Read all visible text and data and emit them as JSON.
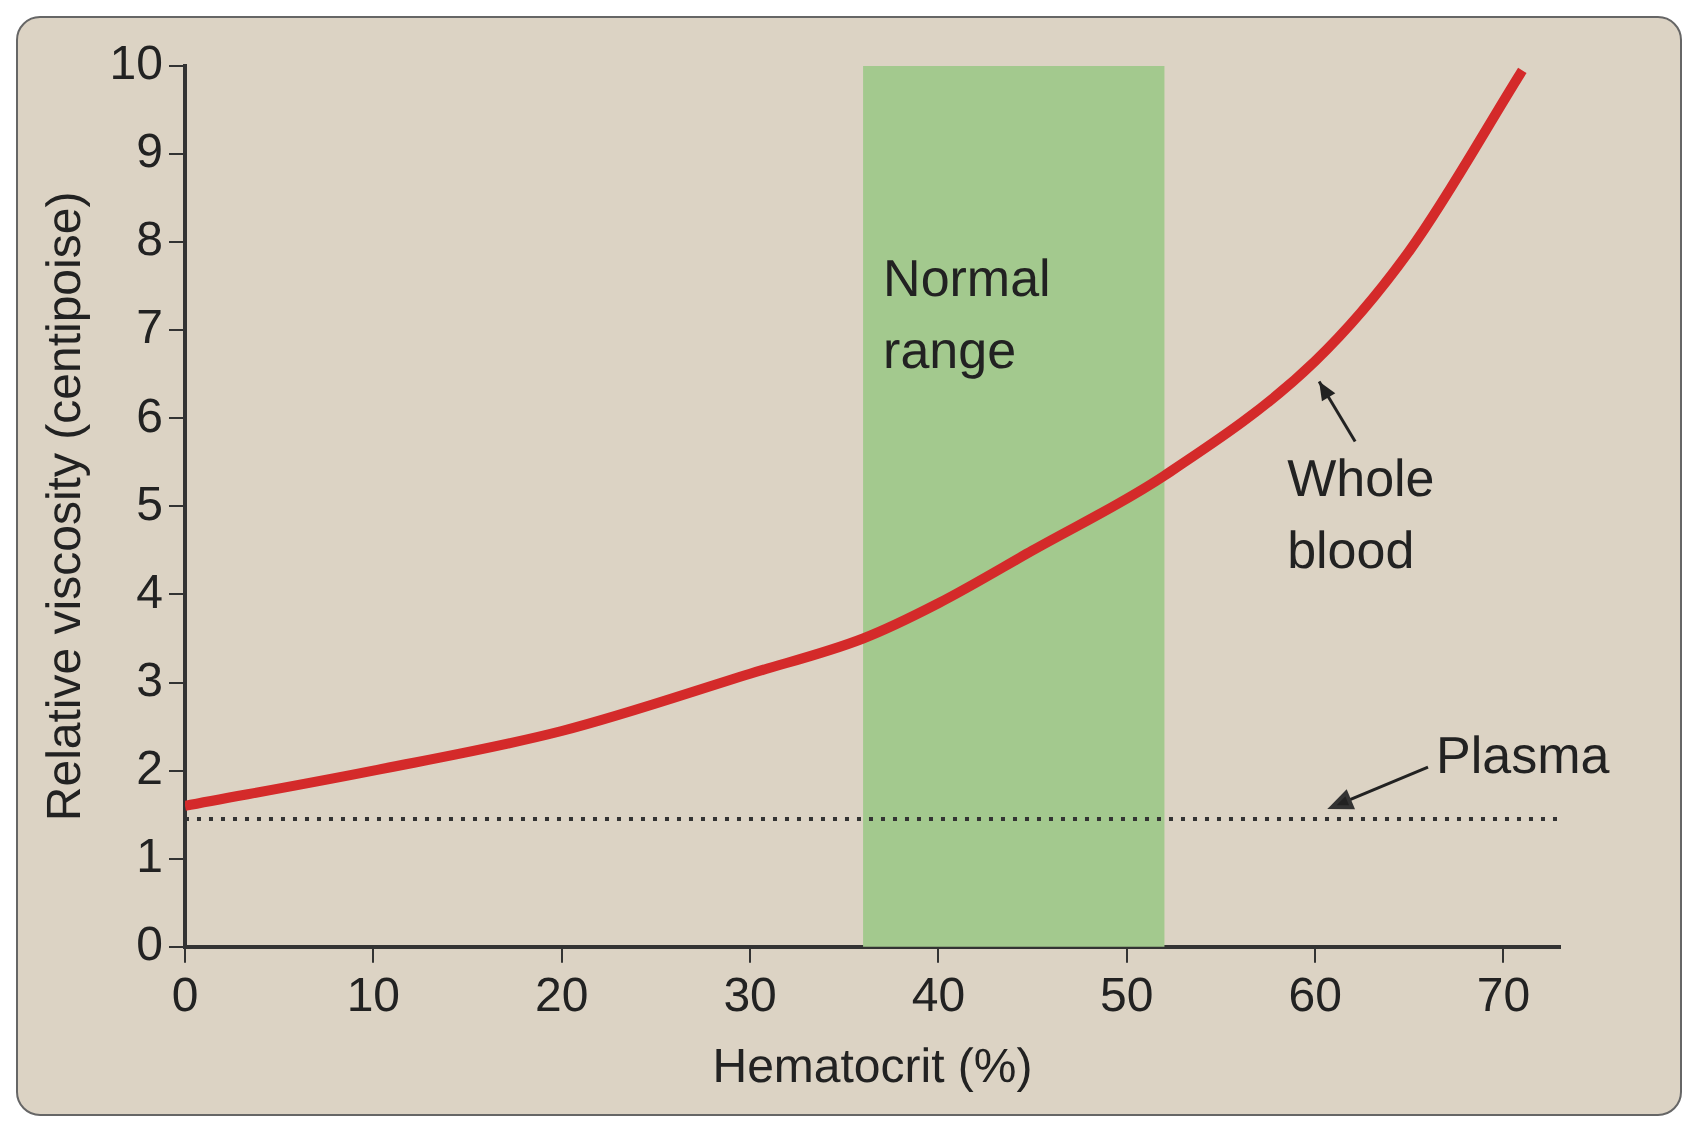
{
  "chart_data": {
    "type": "line",
    "xlabel": "Hematocrit (%)",
    "ylabel": "Relative viscosity (centipoise)",
    "x": [
      0,
      10,
      20,
      30,
      36,
      40,
      45,
      52,
      60,
      65,
      71
    ],
    "series": [
      {
        "color": "#d42a2a",
        "values": [
          1.6,
          2.0,
          2.45,
          3.1,
          3.5,
          3.9,
          4.5,
          5.35,
          6.65,
          7.9,
          9.95
        ]
      }
    ],
    "xlim": [
      0,
      73
    ],
    "xticks": [
      0,
      10,
      20,
      30,
      40,
      50,
      60,
      70
    ],
    "ylim": [
      0,
      10
    ],
    "yticks": [
      0,
      1,
      2,
      3,
      4,
      5,
      6,
      7,
      8,
      9,
      10
    ],
    "grid": false,
    "legend": false,
    "marker": "none",
    "line_style": "solid",
    "bands": [
      {
        "axis": "x",
        "from": 36,
        "to": 52,
        "label": "Normal range",
        "color": "#a3c98e"
      }
    ],
    "ref_lines": [
      {
        "axis": "y",
        "value": 1.45,
        "label": "Plasma",
        "color": "#333333",
        "line_style": "dotted"
      }
    ],
    "annotations": [
      {
        "text": "Whole blood",
        "x": 60,
        "y": 6.6
      }
    ]
  }
}
